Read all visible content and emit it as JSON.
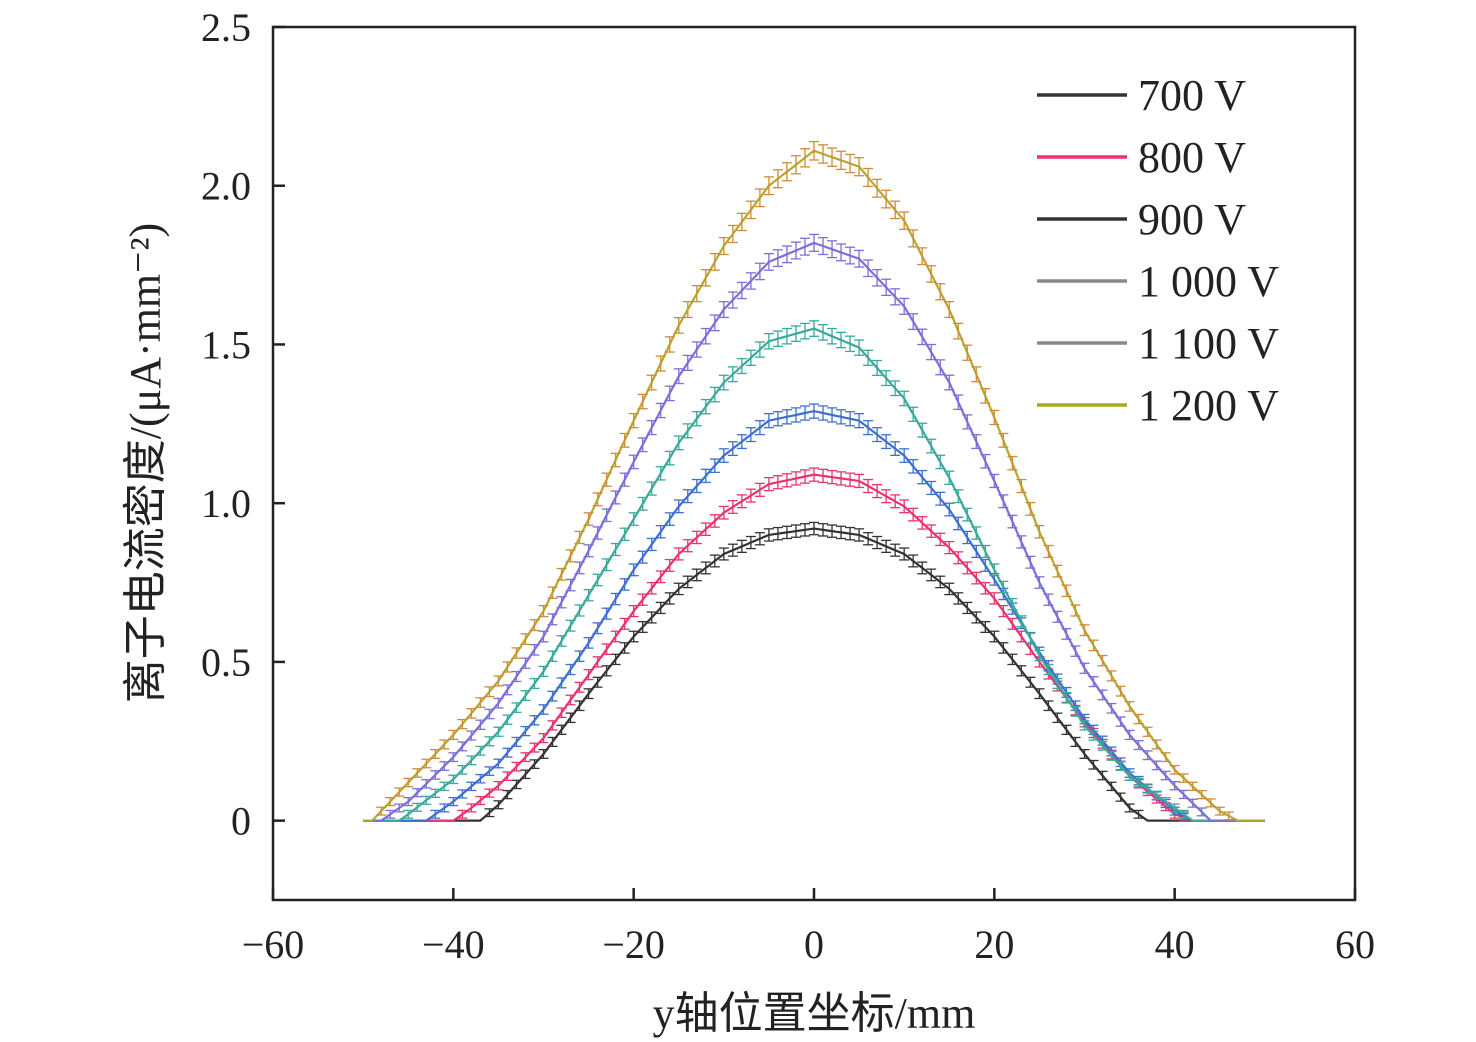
{
  "chart_data": {
    "type": "line",
    "xlabel": "y轴位置坐标/mm",
    "ylabel": "离子电流密度/(μA·mm⁻²)",
    "xlim": [
      -60,
      60
    ],
    "ylim": [
      -0.25,
      2.5
    ],
    "x_ticks": [
      "−60",
      "−40",
      "−20",
      "0",
      "20",
      "40",
      "60"
    ],
    "x_tick_values": [
      -60,
      -40,
      -20,
      0,
      20,
      40,
      60
    ],
    "y_ticks": [
      "0",
      "0.5",
      "1.0",
      "1.5",
      "2.0",
      "2.5"
    ],
    "y_tick_values": [
      0,
      0.5,
      1.0,
      1.5,
      2.0,
      2.5
    ],
    "grid": false,
    "legend_position": "top-right",
    "error_bars": true,
    "series": [
      {
        "name": "700 V",
        "legend_color": "#333333",
        "curve_color": "#333333",
        "bar_color": "#333333",
        "points": [
          [
            -50,
            0
          ],
          [
            -45,
            0
          ],
          [
            -40,
            0
          ],
          [
            -37,
            0
          ],
          [
            -35,
            0.05
          ],
          [
            -30,
            0.21
          ],
          [
            -25,
            0.4
          ],
          [
            -20,
            0.58
          ],
          [
            -15,
            0.73
          ],
          [
            -10,
            0.84
          ],
          [
            -5,
            0.9
          ],
          [
            0,
            0.92
          ],
          [
            5,
            0.9
          ],
          [
            10,
            0.84
          ],
          [
            15,
            0.73
          ],
          [
            20,
            0.58
          ],
          [
            25,
            0.4
          ],
          [
            30,
            0.21
          ],
          [
            35,
            0.04
          ],
          [
            37,
            0
          ],
          [
            40,
            0
          ],
          [
            45,
            0
          ],
          [
            50,
            0
          ]
        ]
      },
      {
        "name": "800 V",
        "legend_color": "#e8336f",
        "curve_color": "#e8336f",
        "bar_color": "#e8336f",
        "points": [
          [
            -50,
            0
          ],
          [
            -45,
            0
          ],
          [
            -40,
            0
          ],
          [
            -38,
            0.04
          ],
          [
            -35,
            0.11
          ],
          [
            -30,
            0.26
          ],
          [
            -25,
            0.46
          ],
          [
            -20,
            0.66
          ],
          [
            -15,
            0.84
          ],
          [
            -10,
            0.97
          ],
          [
            -5,
            1.06
          ],
          [
            0,
            1.09
          ],
          [
            5,
            1.07
          ],
          [
            10,
            0.99
          ],
          [
            15,
            0.86
          ],
          [
            20,
            0.7
          ],
          [
            25,
            0.5
          ],
          [
            30,
            0.31
          ],
          [
            35,
            0.14
          ],
          [
            40,
            0.02
          ],
          [
            42,
            0
          ],
          [
            45,
            0
          ],
          [
            50,
            0
          ]
        ]
      },
      {
        "name": "900 V",
        "legend_color": "#333333",
        "curve_color": "#3d6fd1",
        "bar_color": "#3d6fd1",
        "points": [
          [
            -50,
            0
          ],
          [
            -45,
            0
          ],
          [
            -43,
            0
          ],
          [
            -40,
            0.06
          ],
          [
            -35,
            0.18
          ],
          [
            -30,
            0.35
          ],
          [
            -25,
            0.56
          ],
          [
            -20,
            0.79
          ],
          [
            -15,
            0.99
          ],
          [
            -10,
            1.15
          ],
          [
            -5,
            1.26
          ],
          [
            0,
            1.29
          ],
          [
            5,
            1.26
          ],
          [
            10,
            1.15
          ],
          [
            15,
            0.98
          ],
          [
            20,
            0.76
          ],
          [
            25,
            0.53
          ],
          [
            30,
            0.32
          ],
          [
            35,
            0.15
          ],
          [
            40,
            0.03
          ],
          [
            42,
            0
          ],
          [
            45,
            0
          ],
          [
            50,
            0
          ]
        ]
      },
      {
        "name": "1 000 V",
        "legend_color": "#888888",
        "curve_color": "#3aa89a",
        "bar_color": "#3aa89a",
        "points": [
          [
            -50,
            0
          ],
          [
            -46,
            0
          ],
          [
            -45,
            0.02
          ],
          [
            -40,
            0.13
          ],
          [
            -35,
            0.28
          ],
          [
            -30,
            0.47
          ],
          [
            -25,
            0.71
          ],
          [
            -20,
            0.95
          ],
          [
            -15,
            1.19
          ],
          [
            -10,
            1.38
          ],
          [
            -5,
            1.51
          ],
          [
            0,
            1.55
          ],
          [
            5,
            1.49
          ],
          [
            10,
            1.33
          ],
          [
            15,
            1.08
          ],
          [
            20,
            0.79
          ],
          [
            25,
            0.52
          ],
          [
            30,
            0.3
          ],
          [
            35,
            0.14
          ],
          [
            40,
            0.04
          ],
          [
            42,
            0
          ],
          [
            45,
            0
          ],
          [
            50,
            0
          ]
        ]
      },
      {
        "name": "1 100 V",
        "legend_color": "#888888",
        "curve_color": "#7b6fd8",
        "bar_color": "#7b6fd8",
        "points": [
          [
            -50,
            0
          ],
          [
            -48,
            0
          ],
          [
            -45,
            0.06
          ],
          [
            -40,
            0.2
          ],
          [
            -35,
            0.37
          ],
          [
            -30,
            0.58
          ],
          [
            -25,
            0.85
          ],
          [
            -20,
            1.13
          ],
          [
            -15,
            1.4
          ],
          [
            -10,
            1.61
          ],
          [
            -5,
            1.76
          ],
          [
            0,
            1.82
          ],
          [
            5,
            1.77
          ],
          [
            10,
            1.62
          ],
          [
            15,
            1.38
          ],
          [
            20,
            1.07
          ],
          [
            25,
            0.75
          ],
          [
            30,
            0.48
          ],
          [
            35,
            0.27
          ],
          [
            40,
            0.11
          ],
          [
            44,
            0
          ],
          [
            45,
            0
          ],
          [
            50,
            0
          ]
        ]
      },
      {
        "name": "1 200 V",
        "legend_color": "#a8a820",
        "curve_color": "#b5a82b",
        "bar_color": "#d08a3a",
        "points": [
          [
            -50,
            0
          ],
          [
            -49,
            0
          ],
          [
            -45,
            0.12
          ],
          [
            -40,
            0.27
          ],
          [
            -35,
            0.44
          ],
          [
            -30,
            0.66
          ],
          [
            -25,
            0.95
          ],
          [
            -20,
            1.26
          ],
          [
            -15,
            1.56
          ],
          [
            -10,
            1.81
          ],
          [
            -5,
            2.0
          ],
          [
            0,
            2.11
          ],
          [
            5,
            2.06
          ],
          [
            10,
            1.89
          ],
          [
            15,
            1.61
          ],
          [
            20,
            1.27
          ],
          [
            25,
            0.91
          ],
          [
            30,
            0.6
          ],
          [
            35,
            0.36
          ],
          [
            40,
            0.16
          ],
          [
            45,
            0.03
          ],
          [
            47,
            0
          ],
          [
            50,
            0
          ]
        ]
      }
    ]
  }
}
